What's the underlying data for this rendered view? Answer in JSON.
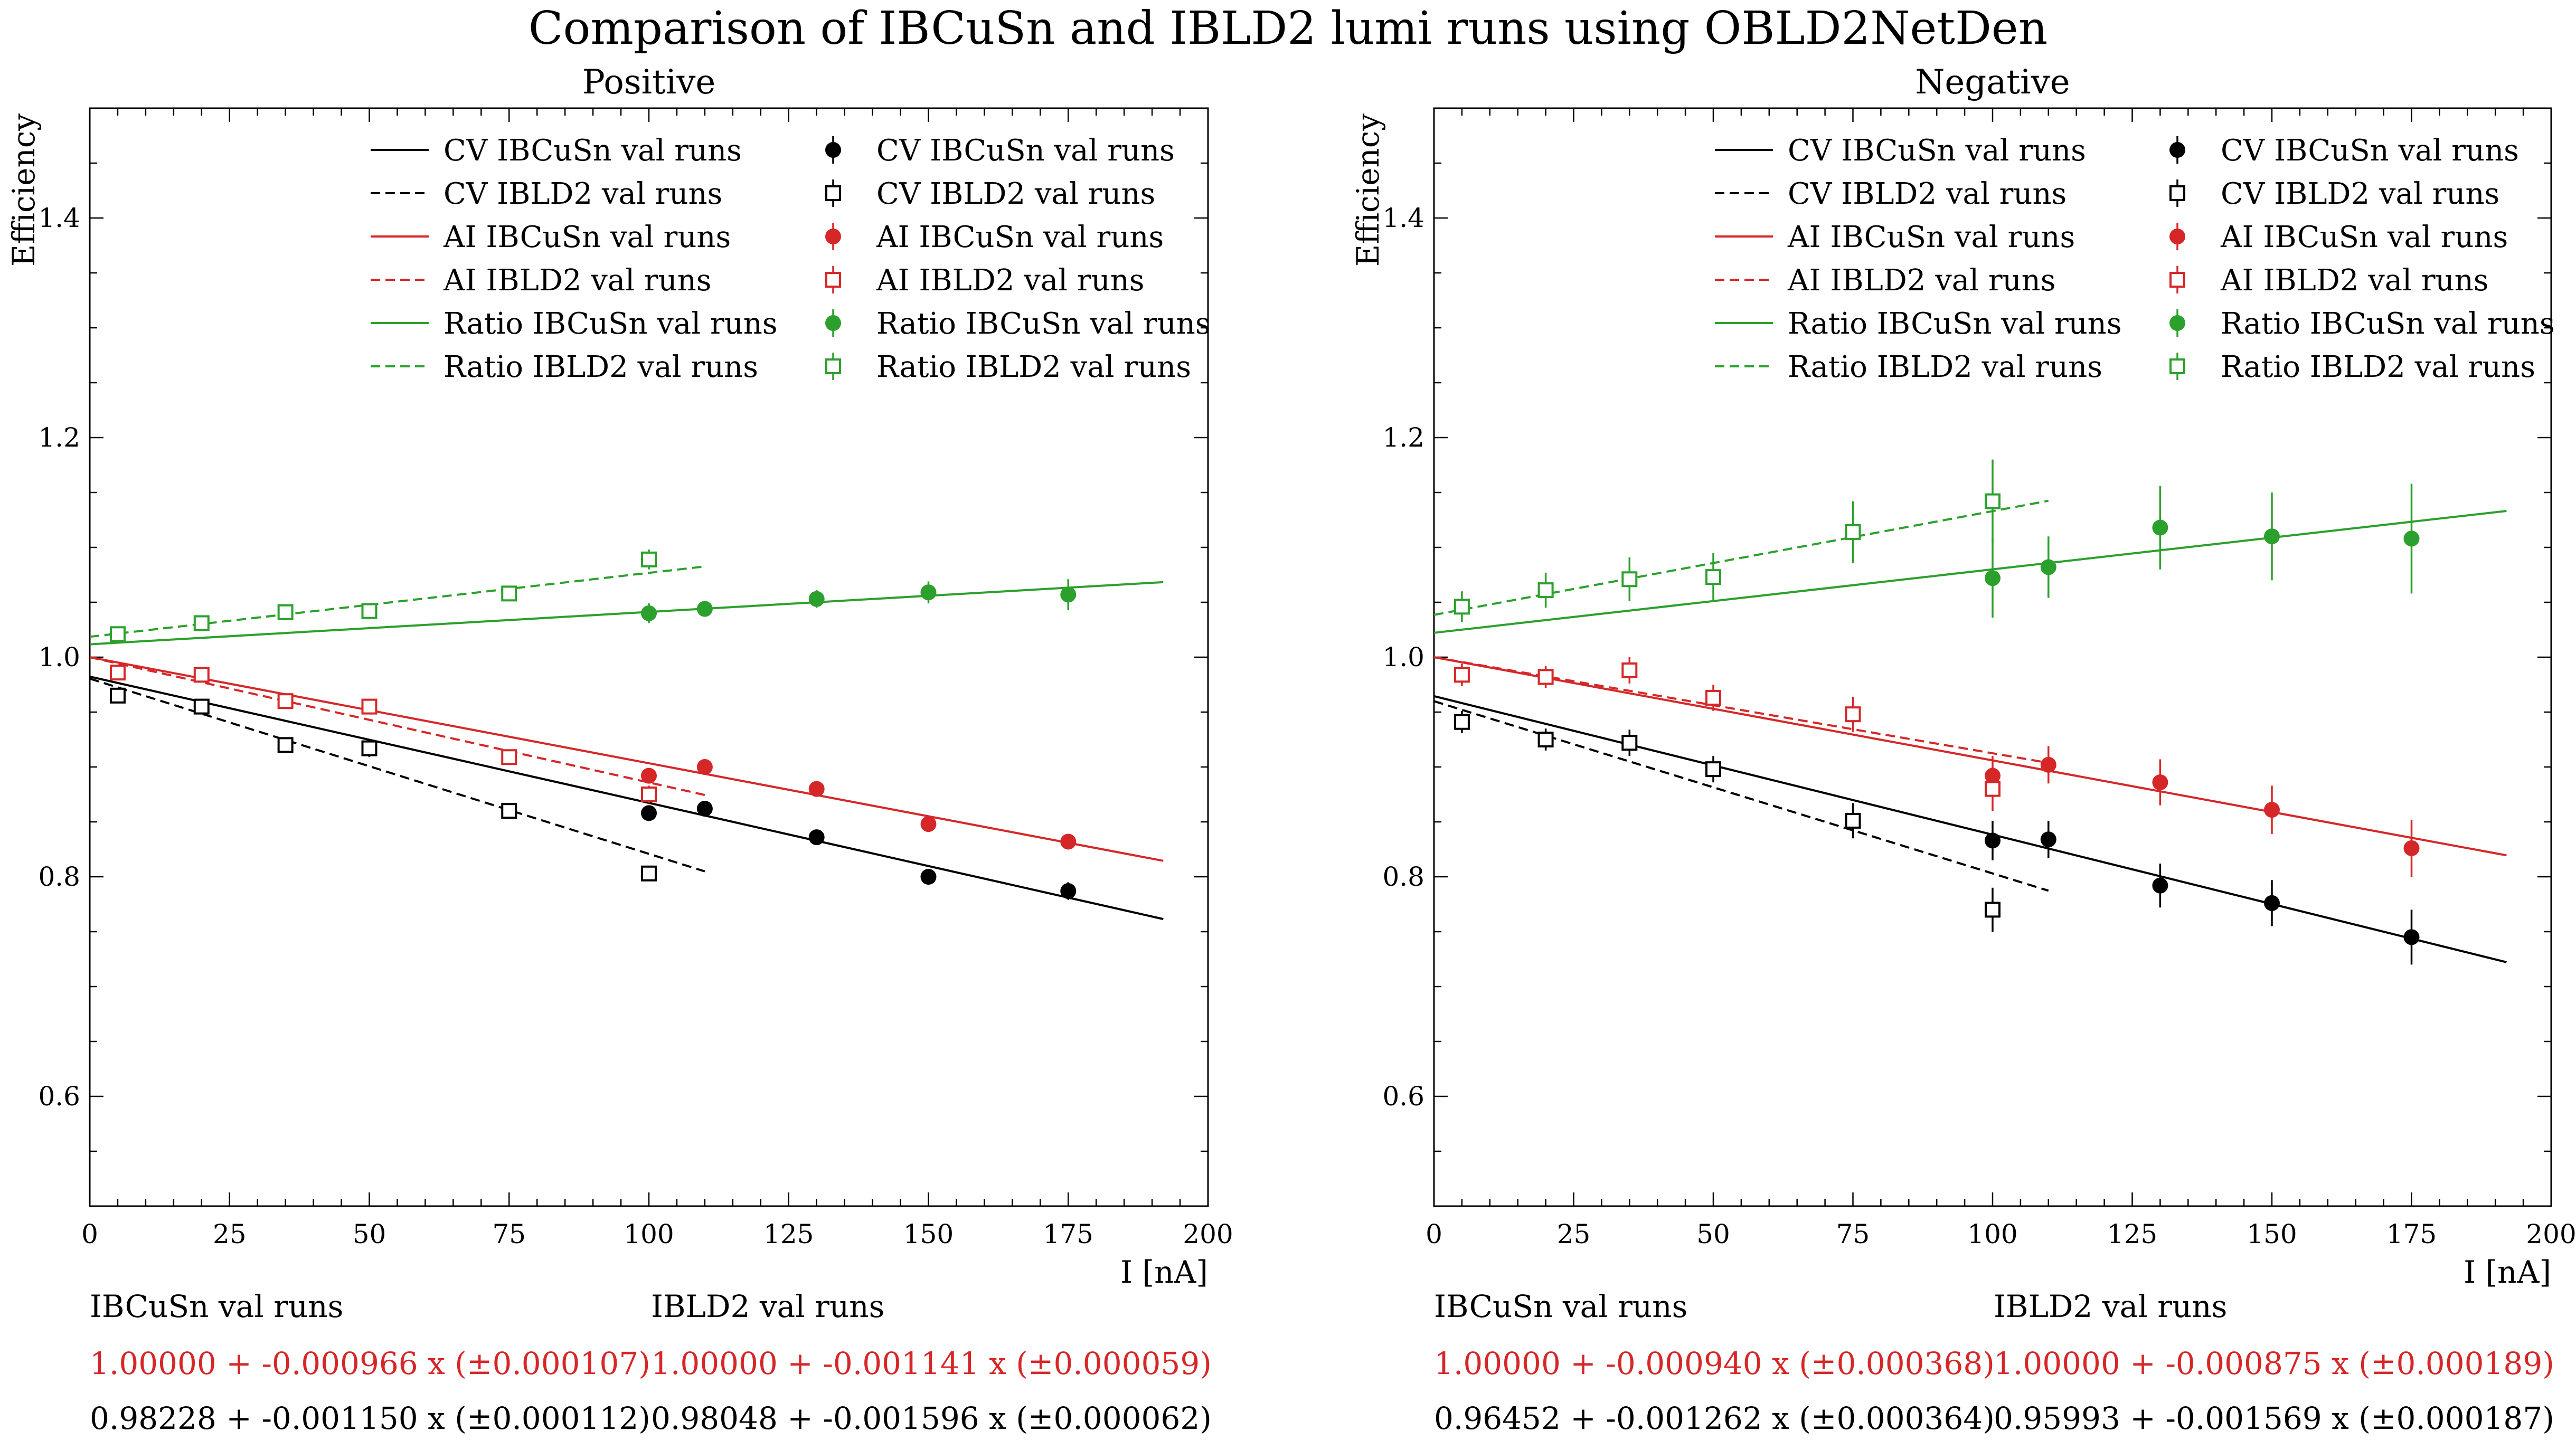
{
  "title": "Comparison of IBCuSn and IBLD2 lumi runs using OBLD2NetDen",
  "colors": {
    "CV": "#000000",
    "AI": "#d62728",
    "Ratio": "#2ca02c"
  },
  "chart_data": [
    {
      "type": "scatter",
      "title": "Positive",
      "xlabel": "I [nA]",
      "ylabel": "Efficiency",
      "xlim": [
        0,
        200
      ],
      "ylim": [
        0.5,
        1.5
      ],
      "xticks": [
        "0",
        "25",
        "50",
        "75",
        "100",
        "125",
        "150",
        "175",
        "200"
      ],
      "yticks": [
        "0.6",
        "0.8",
        "1.0",
        "1.2",
        "1.4"
      ],
      "legend_lines": [
        "CV IBCuSn val runs",
        "CV IBLD2 val runs",
        "AI IBCuSn val runs",
        "AI IBLD2 val runs",
        "Ratio IBCuSn val runs",
        "Ratio IBLD2 val runs"
      ],
      "legend_points": [
        "CV IBCuSn val runs",
        "CV IBLD2 val runs",
        "AI IBCuSn val runs",
        "AI IBLD2 val runs",
        "Ratio IBCuSn val runs",
        "Ratio IBLD2 val runs"
      ],
      "series": [
        {
          "name": "CV IBCuSn val runs",
          "color": "CV",
          "marker": "filled-circle",
          "x": [
            100,
            110,
            130,
            150,
            175
          ],
          "y": [
            0.858,
            0.862,
            0.836,
            0.8,
            0.787
          ],
          "err": [
            0.006,
            0.006,
            0.005,
            0.005,
            0.008
          ]
        },
        {
          "name": "CV IBLD2 val runs",
          "color": "CV",
          "marker": "open-square",
          "x": [
            5,
            20,
            35,
            50,
            75,
            100
          ],
          "y": [
            0.965,
            0.955,
            0.92,
            0.917,
            0.86,
            0.803
          ],
          "err": [
            0.007,
            0.006,
            0.006,
            0.008,
            0.006,
            0.007
          ]
        },
        {
          "name": "AI IBCuSn val runs",
          "color": "AI",
          "marker": "filled-circle",
          "x": [
            100,
            110,
            130,
            150,
            175
          ],
          "y": [
            0.892,
            0.9,
            0.88,
            0.848,
            0.832
          ],
          "err": [
            0.006,
            0.006,
            0.005,
            0.005,
            0.006
          ]
        },
        {
          "name": "AI IBLD2 val runs",
          "color": "AI",
          "marker": "open-square",
          "x": [
            5,
            20,
            35,
            50,
            75,
            100
          ],
          "y": [
            0.986,
            0.984,
            0.96,
            0.955,
            0.909,
            0.875
          ],
          "err": [
            0.006,
            0.006,
            0.006,
            0.006,
            0.006,
            0.008
          ]
        },
        {
          "name": "Ratio IBCuSn val runs",
          "color": "Ratio",
          "marker": "filled-circle",
          "x": [
            100,
            110,
            130,
            150,
            175
          ],
          "y": [
            1.04,
            1.044,
            1.053,
            1.059,
            1.057
          ],
          "err": [
            0.009,
            0.006,
            0.008,
            0.01,
            0.014
          ]
        },
        {
          "name": "Ratio IBLD2 val runs",
          "color": "Ratio",
          "marker": "open-square",
          "x": [
            5,
            20,
            35,
            50,
            75,
            100
          ],
          "y": [
            1.021,
            1.031,
            1.041,
            1.042,
            1.058,
            1.089
          ],
          "err": [
            0.006,
            0.005,
            0.005,
            0.006,
            0.006,
            0.009
          ]
        }
      ],
      "fits": [
        {
          "name": "CV IBCuSn val runs",
          "color": "CV",
          "style": "solid",
          "intercept": 0.98228,
          "slope": -0.00115,
          "x": [
            0,
            192
          ]
        },
        {
          "name": "CV IBLD2 val runs",
          "color": "CV",
          "style": "dashed",
          "intercept": 0.98048,
          "slope": -0.001596,
          "x": [
            0,
            110
          ]
        },
        {
          "name": "AI IBCuSn val runs",
          "color": "AI",
          "style": "solid",
          "intercept": 1.0,
          "slope": -0.000966,
          "x": [
            0,
            192
          ]
        },
        {
          "name": "AI IBLD2 val runs",
          "color": "AI",
          "style": "dashed",
          "intercept": 1.0,
          "slope": -0.001141,
          "x": [
            0,
            110
          ]
        },
        {
          "name": "Ratio IBCuSn val runs",
          "color": "Ratio",
          "style": "solid",
          "intercept": 1.0117,
          "slope": 0.000295,
          "x": [
            0,
            192
          ]
        },
        {
          "name": "Ratio IBLD2 val runs",
          "color": "Ratio",
          "style": "dashed",
          "intercept": 1.0186,
          "slope": 0.000582,
          "x": [
            0,
            110
          ]
        }
      ],
      "equations": {
        "left_header": "IBCuSn val runs",
        "left_ai": "1.00000 + -0.000966 x (±0.000107)",
        "left_cv": "0.98228 + -0.001150 x (±0.000112)",
        "right_header": "IBLD2 val runs",
        "right_ai": "1.00000 + -0.001141 x (±0.000059)",
        "right_cv": "0.98048 + -0.001596 x (±0.000062)"
      }
    },
    {
      "type": "scatter",
      "title": "Negative",
      "xlabel": "I [nA]",
      "ylabel": "Efficiency",
      "xlim": [
        0,
        200
      ],
      "ylim": [
        0.5,
        1.5
      ],
      "xticks": [
        "0",
        "25",
        "50",
        "75",
        "100",
        "125",
        "150",
        "175",
        "200"
      ],
      "yticks": [
        "0.6",
        "0.8",
        "1.0",
        "1.2",
        "1.4"
      ],
      "legend_lines": [
        "CV IBCuSn val runs",
        "CV IBLD2 val runs",
        "AI IBCuSn val runs",
        "AI IBLD2 val runs",
        "Ratio IBCuSn val runs",
        "Ratio IBLD2 val runs"
      ],
      "legend_points": [
        "CV IBCuSn val runs",
        "CV IBLD2 val runs",
        "AI IBCuSn val runs",
        "AI IBLD2 val runs",
        "Ratio IBCuSn val runs",
        "Ratio IBLD2 val runs"
      ],
      "series": [
        {
          "name": "CV IBCuSn val runs",
          "color": "CV",
          "marker": "filled-circle",
          "x": [
            100,
            110,
            130,
            150,
            175
          ],
          "y": [
            0.833,
            0.834,
            0.792,
            0.776,
            0.745
          ],
          "err": [
            0.018,
            0.017,
            0.02,
            0.021,
            0.025
          ]
        },
        {
          "name": "CV IBLD2 val runs",
          "color": "CV",
          "marker": "open-square",
          "x": [
            5,
            20,
            35,
            50,
            75,
            100
          ],
          "y": [
            0.941,
            0.925,
            0.922,
            0.898,
            0.851,
            0.77
          ],
          "err": [
            0.01,
            0.01,
            0.012,
            0.012,
            0.016,
            0.02
          ]
        },
        {
          "name": "AI IBCuSn val runs",
          "color": "AI",
          "marker": "filled-circle",
          "x": [
            100,
            110,
            130,
            150,
            175
          ],
          "y": [
            0.892,
            0.902,
            0.886,
            0.861,
            0.826
          ],
          "err": [
            0.018,
            0.017,
            0.021,
            0.022,
            0.026
          ]
        },
        {
          "name": "AI IBLD2 val runs",
          "color": "AI",
          "marker": "open-square",
          "x": [
            5,
            20,
            35,
            50,
            75,
            100
          ],
          "y": [
            0.984,
            0.982,
            0.988,
            0.963,
            0.948,
            0.88
          ],
          "err": [
            0.01,
            0.01,
            0.012,
            0.012,
            0.016,
            0.02
          ]
        },
        {
          "name": "Ratio IBCuSn val runs",
          "color": "Ratio",
          "marker": "filled-circle",
          "x": [
            100,
            110,
            130,
            150,
            175
          ],
          "y": [
            1.072,
            1.082,
            1.118,
            1.11,
            1.108
          ],
          "err": [
            0.036,
            0.028,
            0.038,
            0.04,
            0.05
          ]
        },
        {
          "name": "Ratio IBLD2 val runs",
          "color": "Ratio",
          "marker": "open-square",
          "x": [
            5,
            20,
            35,
            50,
            75,
            100
          ],
          "y": [
            1.046,
            1.061,
            1.071,
            1.073,
            1.114,
            1.142
          ],
          "err": [
            0.014,
            0.016,
            0.02,
            0.022,
            0.028,
            0.038
          ]
        }
      ],
      "fits": [
        {
          "name": "CV IBCuSn val runs",
          "color": "CV",
          "style": "solid",
          "intercept": 0.96452,
          "slope": -0.001262,
          "x": [
            0,
            192
          ]
        },
        {
          "name": "CV IBLD2 val runs",
          "color": "CV",
          "style": "dashed",
          "intercept": 0.95993,
          "slope": -0.001569,
          "x": [
            0,
            110
          ]
        },
        {
          "name": "AI IBCuSn val runs",
          "color": "AI",
          "style": "solid",
          "intercept": 1.0,
          "slope": -0.00094,
          "x": [
            0,
            192
          ]
        },
        {
          "name": "AI IBLD2 val runs",
          "color": "AI",
          "style": "dashed",
          "intercept": 1.0,
          "slope": -0.000875,
          "x": [
            0,
            110
          ]
        },
        {
          "name": "Ratio IBCuSn val runs",
          "color": "Ratio",
          "style": "solid",
          "intercept": 1.0222,
          "slope": 0.000578,
          "x": [
            0,
            192
          ]
        },
        {
          "name": "Ratio IBLD2 val runs",
          "color": "Ratio",
          "style": "dashed",
          "intercept": 1.0385,
          "slope": 0.000945,
          "x": [
            0,
            110
          ]
        }
      ],
      "equations": {
        "left_header": "IBCuSn val runs",
        "left_ai": "1.00000 + -0.000940 x (±0.000368)",
        "left_cv": "0.96452 + -0.001262 x (±0.000364)",
        "right_header": "IBLD2 val runs",
        "right_ai": "1.00000 + -0.000875 x (±0.000189)",
        "right_cv": "0.95993 + -0.001569 x (±0.000187)"
      }
    }
  ]
}
